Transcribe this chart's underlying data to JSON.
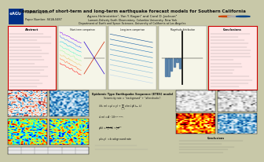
{
  "title": "Comparison of short-term and long-term earthquake forecast models for Southern California",
  "authors": "Agnes Helmstetter¹, Yan Y. Kagan² and Carol D. Jackson²",
  "affiliation1": "Lamont-Doherty Earth Observatory, Columbia University, New York",
  "affiliation2": "Department of Earth and Space Sciences, University of California at Los Angeles",
  "agu_logo_color": "#003087",
  "header_bg": "#e0e0e0",
  "section_bg": "#f5f5e8",
  "section1_bg": "#ffe8e8",
  "section2_bg": "#ffe8e8",
  "bottom_bg": "#e8f0e8",
  "red_box_color": "#cc0000",
  "poster_bg": "#c8c8a8",
  "panel_bg": "#f0f0d8",
  "text_color": "#111111",
  "meeting_text": "Fall Meeting 2003",
  "paper_text": "Paper Number: S61A-0487",
  "etes_section_title": "Epidemic Type Earthquake Sequence (ETES) model",
  "etes_subtitle": "Seismicity rate = \"background\" + \"aftershocks\":"
}
